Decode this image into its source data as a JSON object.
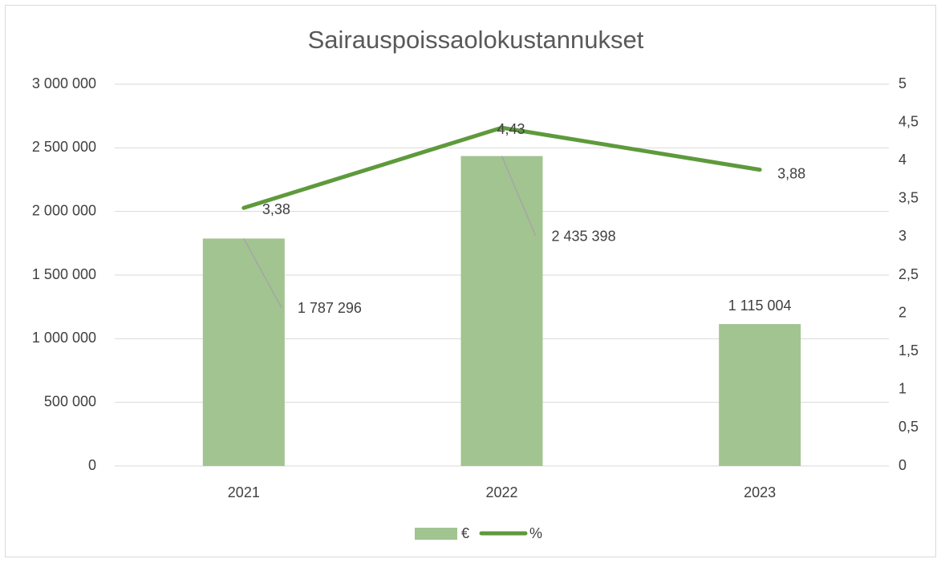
{
  "chart_data": {
    "type": "combo",
    "title": "Sairauspoissaolokustannukset",
    "categories": [
      "2021",
      "2022",
      "2023"
    ],
    "series": [
      {
        "name": "€",
        "type": "bar",
        "color": "#a2c490",
        "values": [
          1787296,
          2435398,
          1115004
        ],
        "value_labels": [
          "1 787 296",
          "2 435 398",
          "1 115 004"
        ]
      },
      {
        "name": "%",
        "type": "line",
        "axis": "y2",
        "color": "#5e9a3c",
        "values": [
          3.38,
          4.43,
          3.88
        ],
        "value_labels": [
          "3,38",
          "4,43",
          "3,88"
        ]
      }
    ],
    "ylim": [
      0,
      3000000
    ],
    "yticks": [
      0,
      {
        "value": 500000,
        "label": "500 000"
      },
      {
        "value": 1000000,
        "label": "1 000 000"
      },
      {
        "value": 1500000,
        "label": "1 500 000"
      },
      {
        "value": 2000000,
        "label": "2 000 000"
      },
      {
        "value": 2500000,
        "label": "2 500 000"
      },
      {
        "value": 3000000,
        "label": "3 000 000"
      }
    ],
    "y2lim": [
      0,
      5
    ],
    "y2ticks": [
      0,
      {
        "value": 0.5,
        "label": "0,5"
      },
      1,
      {
        "value": 1.5,
        "label": "1,5"
      },
      2,
      {
        "value": 2.5,
        "label": "2,5"
      },
      3,
      {
        "value": 3.5,
        "label": "3,5"
      },
      4,
      {
        "value": 4.5,
        "label": "4,5"
      },
      5
    ],
    "grid": true,
    "legend": "bottom"
  }
}
